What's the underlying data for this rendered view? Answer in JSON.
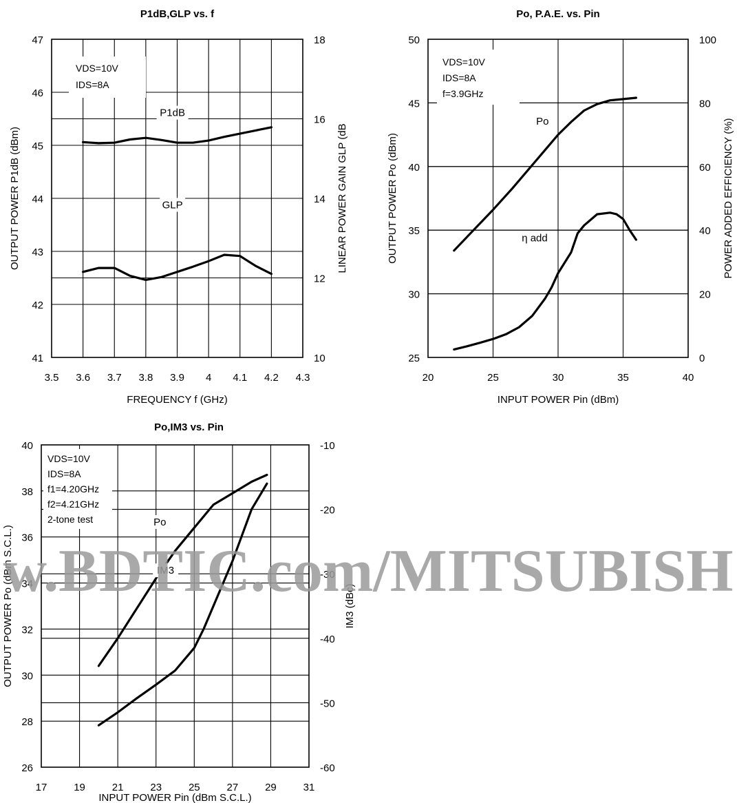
{
  "watermark": "w.BDTIC.com/MITSUBISH",
  "chart_data": [
    {
      "id": "p1db-glp",
      "type": "line",
      "title": "P1dB,GLP vs. f",
      "xlabel": "FREQUENCY f (GHz)",
      "ylabel": "OUTPUT POWER P1dB (dBm)",
      "y2label": "LINEAR POWER GAIN GLP (dB",
      "xlim": [
        3.5,
        4.3
      ],
      "ylim": [
        41,
        47
      ],
      "y2lim": [
        10,
        18
      ],
      "x_ticks": [
        "3.5",
        "3.6",
        "3.7",
        "3.8",
        "3.9",
        "4",
        "4.1",
        "4.2",
        "4.3"
      ],
      "y_ticks": [
        "41",
        "42",
        "43",
        "44",
        "45",
        "46",
        "47"
      ],
      "y2_ticks": [
        {
          "label": "10",
          "value": 10
        },
        {
          "label": "12",
          "value": 12
        },
        {
          "label": "14",
          "value": 14
        },
        {
          "label": "16",
          "value": 16
        },
        {
          "label": "18",
          "value": 18
        }
      ],
      "grid": true,
      "annotations": [
        "VDS=10V",
        "IDS=8A"
      ],
      "series": [
        {
          "name": "P1dB",
          "axis": "left",
          "x": [
            3.6,
            3.65,
            3.7,
            3.75,
            3.8,
            3.85,
            3.9,
            3.95,
            4.0,
            4.05,
            4.1,
            4.15,
            4.2
          ],
          "y": [
            45.06,
            45.04,
            45.05,
            45.11,
            45.14,
            45.1,
            45.05,
            45.05,
            45.09,
            45.16,
            45.22,
            45.28,
            45.34
          ],
          "label_at": [
            3.885,
            45.55
          ]
        },
        {
          "name": "GLP",
          "axis": "right",
          "x": [
            3.6,
            3.65,
            3.7,
            3.75,
            3.8,
            3.85,
            3.9,
            3.95,
            4.0,
            4.05,
            4.1,
            4.15,
            4.2
          ],
          "y": [
            12.15,
            12.25,
            12.25,
            12.05,
            11.95,
            12.02,
            12.15,
            12.28,
            12.42,
            12.58,
            12.55,
            12.3,
            12.1
          ],
          "label_at": [
            3.885,
            13.75
          ]
        }
      ]
    },
    {
      "id": "po-pae",
      "type": "line",
      "title": "Po, P.A.E. vs. Pin",
      "xlabel": "INPUT POWER Pin (dBm)",
      "ylabel": "OUTPUT POWER Po (dBm)",
      "y2label": "POWER ADDED EFFICIENCY  (%)",
      "xlim": [
        20,
        40
      ],
      "ylim": [
        25,
        50
      ],
      "y2lim": [
        0,
        100
      ],
      "x_ticks": [
        "20",
        "25",
        "30",
        "35",
        "40"
      ],
      "y_ticks": [
        "25",
        "30",
        "35",
        "40",
        "45",
        "50"
      ],
      "y2_ticks": [
        {
          "label": "0",
          "value": 0
        },
        {
          "label": "20",
          "value": 20
        },
        {
          "label": "40",
          "value": 40
        },
        {
          "label": "60",
          "value": 60
        },
        {
          "label": "80",
          "value": 80
        },
        {
          "label": "100",
          "value": 100
        }
      ],
      "grid": true,
      "annotations": [
        "VDS=10V",
        "IDS=8A",
        "f=3.9GHz"
      ],
      "series": [
        {
          "name": "Po",
          "axis": "left",
          "x": [
            22,
            23.5,
            25,
            26.5,
            28,
            29,
            30,
            31,
            32,
            33,
            34,
            35,
            36
          ],
          "y": [
            33.4,
            35.0,
            36.6,
            38.3,
            40.1,
            41.3,
            42.5,
            43.5,
            44.4,
            44.9,
            45.2,
            45.3,
            45.4
          ],
          "label_at": [
            28.8,
            43.3
          ]
        },
        {
          "name": "η add",
          "axis": "right",
          "x": [
            22,
            23,
            24,
            25,
            26,
            27,
            28,
            29,
            29.5,
            30,
            31,
            31.5,
            32,
            33,
            34,
            34.5,
            35,
            35.5,
            36
          ],
          "y": [
            2.5,
            3.5,
            4.6,
            5.8,
            7.3,
            9.5,
            13.0,
            18.5,
            22.0,
            26.5,
            33.0,
            39.0,
            41.5,
            45.0,
            45.5,
            45.0,
            43.5,
            40.0,
            37.0
          ],
          "label_at": [
            28.2,
            36.5
          ]
        }
      ]
    },
    {
      "id": "po-im3",
      "type": "line",
      "title": "Po,IM3 vs. Pin",
      "xlabel": "INPUT POWER Pin (dBm S.C.L.)",
      "ylabel": "OUTPUT POWER Po (dBm S.C.L.)",
      "y2label": "IM3 (dBc)",
      "xlim": [
        17,
        31
      ],
      "ylim": [
        26,
        40
      ],
      "y2lim": [
        -60,
        -10
      ],
      "x_ticks": [
        "17",
        "19",
        "21",
        "23",
        "25",
        "27",
        "29",
        "31"
      ],
      "y_ticks": [
        "26",
        "28",
        "30",
        "32",
        "34",
        "36",
        "38",
        "40"
      ],
      "y2_ticks": [
        {
          "label": "-60",
          "value": -60
        },
        {
          "label": "-50",
          "value": -50
        },
        {
          "label": "-40",
          "value": -40
        },
        {
          "label": "-30",
          "value": -30
        },
        {
          "label": "-20",
          "value": -20
        },
        {
          "label": "-10",
          "value": -10
        }
      ],
      "grid": true,
      "annotations": [
        "VDS=10V",
        "IDS=8A",
        "f1=4.20GHz",
        "f2=4.21GHz",
        "2-tone test"
      ],
      "series": [
        {
          "name": "Po",
          "axis": "left",
          "x": [
            20,
            21,
            22,
            23,
            24,
            25,
            26,
            27,
            28,
            28.8
          ],
          "y": [
            30.4,
            31.6,
            32.9,
            34.2,
            35.4,
            36.4,
            37.4,
            37.9,
            38.4,
            38.7
          ],
          "label_at": [
            23.2,
            36.5
          ]
        },
        {
          "name": "IM3",
          "axis": "right",
          "x": [
            20,
            21,
            22,
            23,
            24,
            25,
            25.5,
            26,
            27,
            27.5,
            28,
            28.8
          ],
          "y": [
            -53.5,
            -51.5,
            -49.3,
            -47.2,
            -45.0,
            -41.5,
            -38.5,
            -35.0,
            -28.0,
            -24.0,
            -20.0,
            -16.0
          ],
          "label_at": [
            23.5,
            -30.0
          ]
        }
      ]
    }
  ]
}
